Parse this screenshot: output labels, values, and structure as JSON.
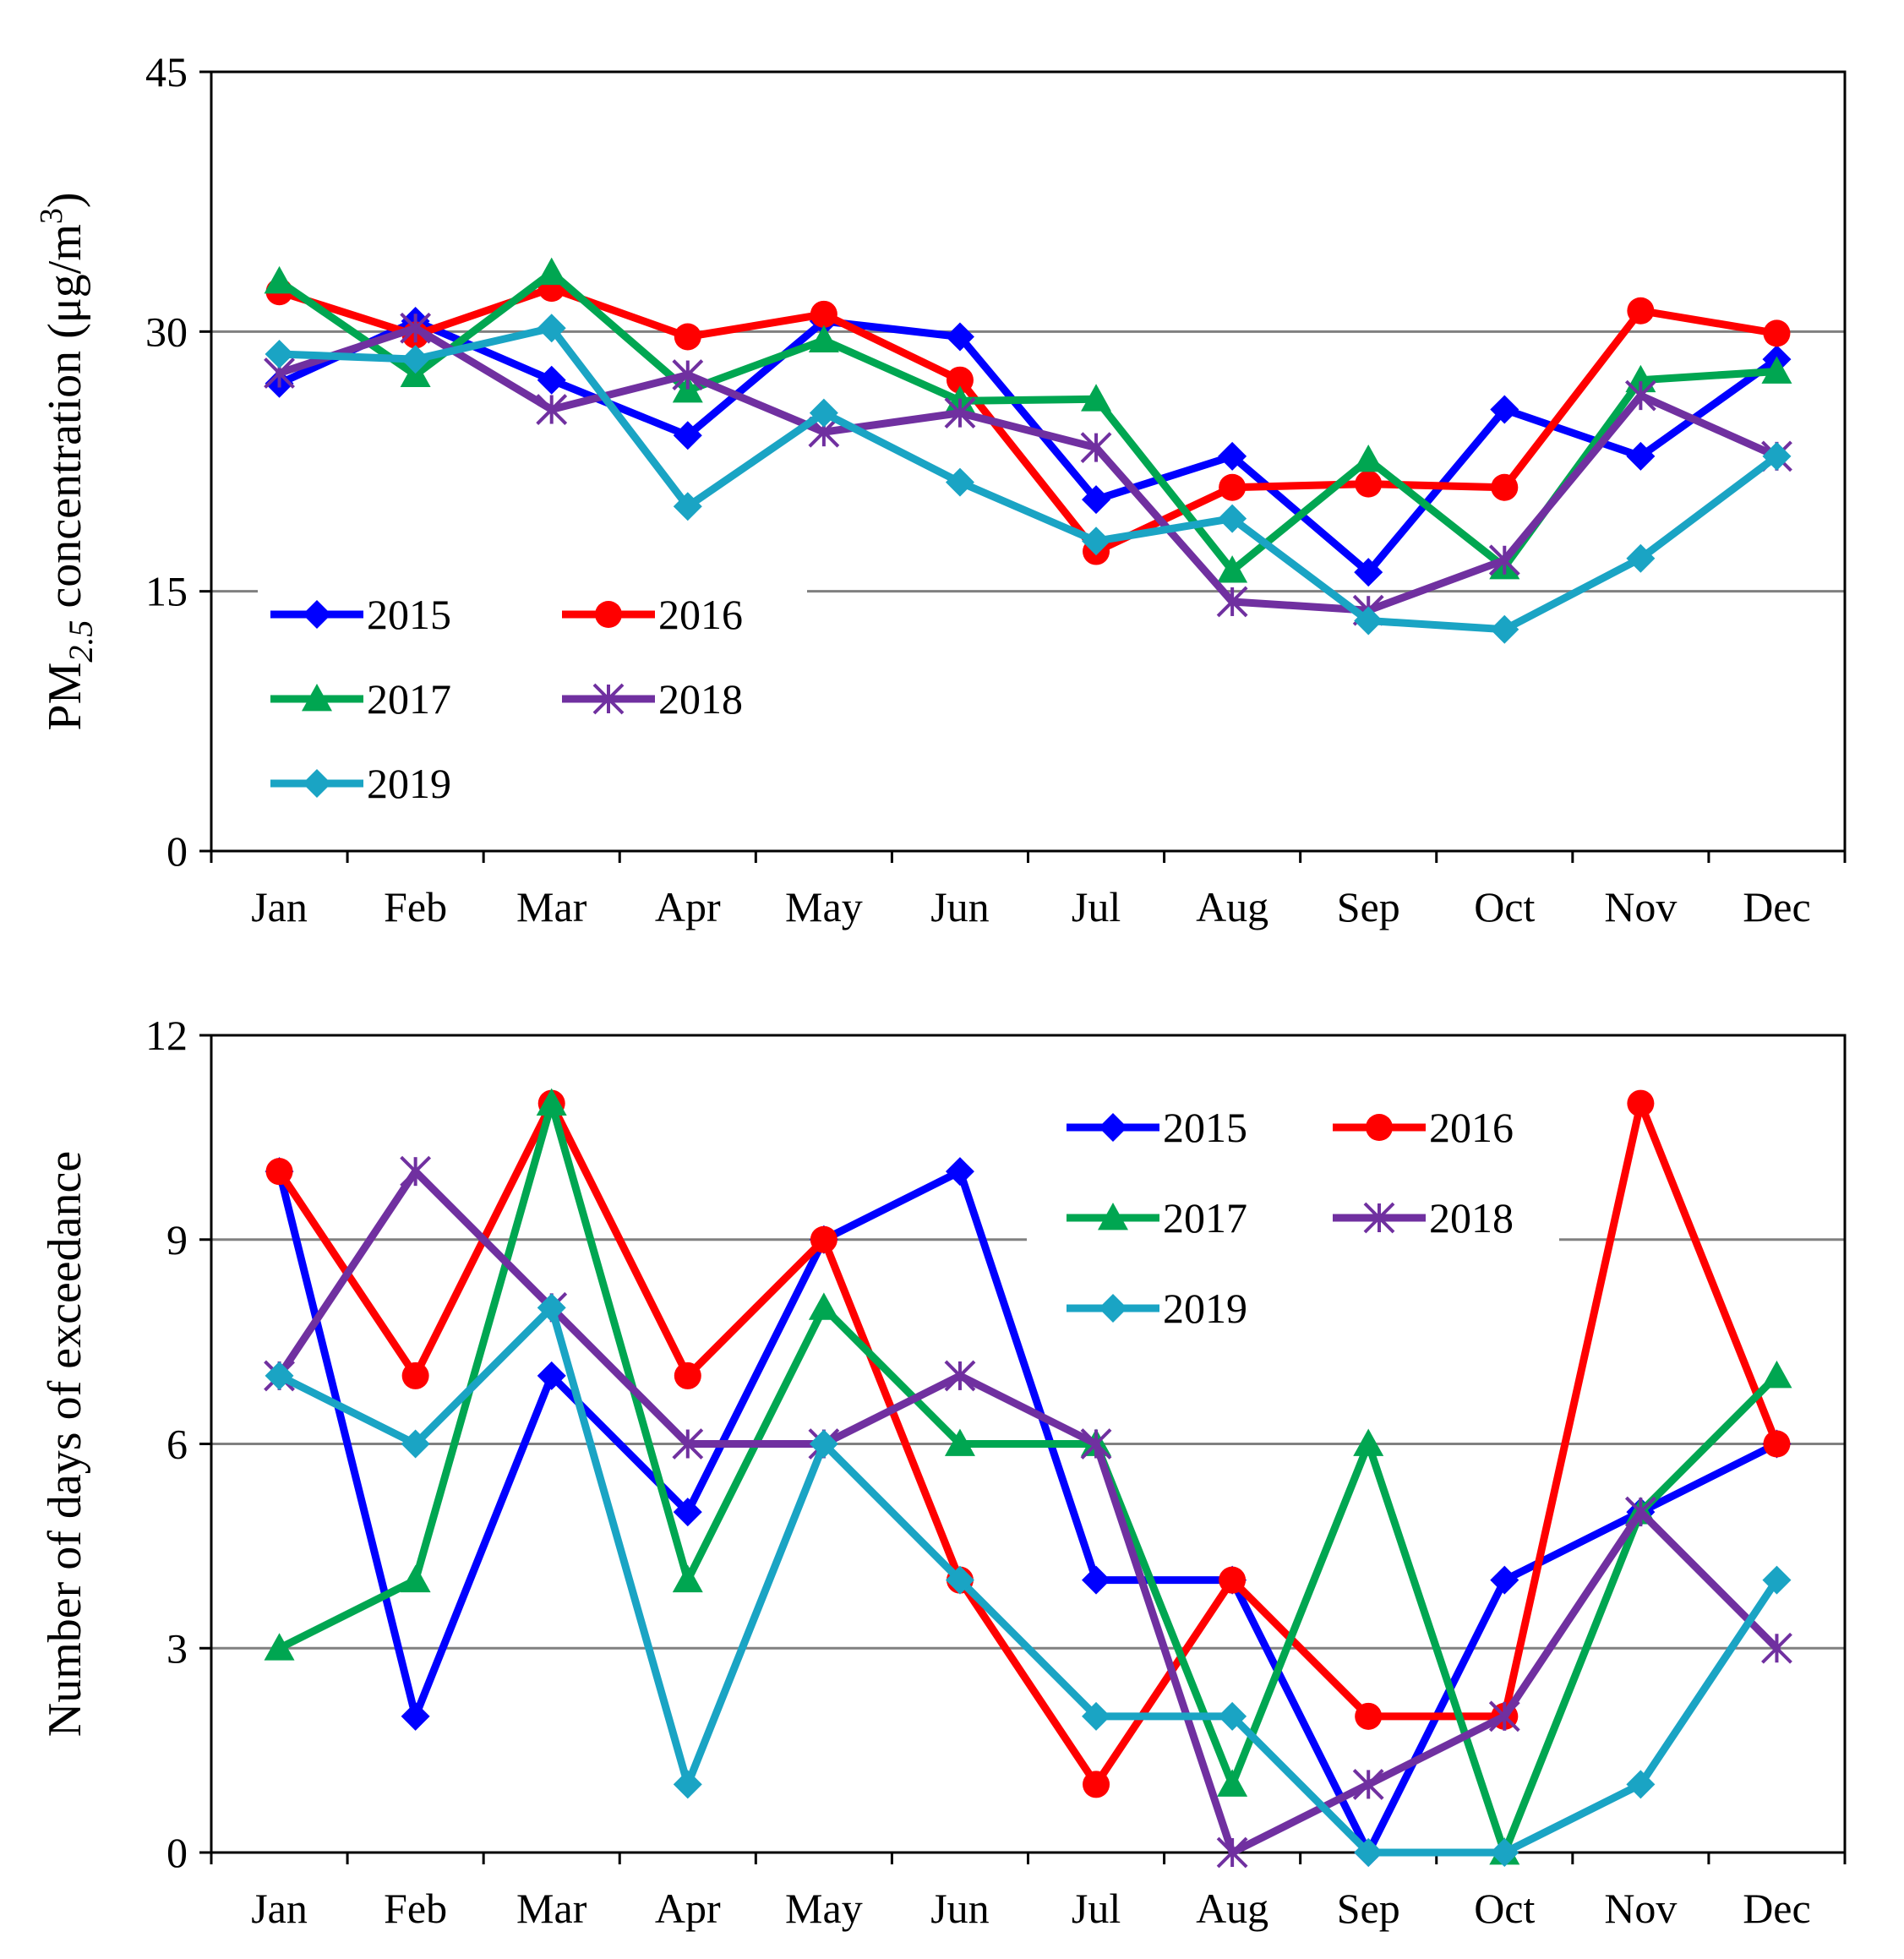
{
  "chart_data": [
    {
      "id": "top",
      "type": "line",
      "title": "",
      "xlabel": "",
      "ylabel": "PM2.5 concentration (μg/m3)",
      "ylabel_parts": {
        "pre": "PM",
        "sub": "2.5",
        "mid": " concentration (μg/m",
        "sup": "3",
        "post": ")"
      },
      "ylim": [
        0,
        45
      ],
      "yticks": [
        "0",
        "15",
        "30",
        "45"
      ],
      "gridlines": [
        15,
        30
      ],
      "categories": [
        "Jan",
        "Feb",
        "Mar",
        "Apr",
        "May",
        "Jun",
        "Jul",
        "Aug",
        "Sep",
        "Oct",
        "Nov",
        "Dec"
      ],
      "legend": "middle-left",
      "series": [
        {
          "name": "2015",
          "color": "#0000ff",
          "marker": "diamond",
          "values": [
            27.0,
            30.6,
            27.2,
            24.0,
            30.6,
            29.7,
            20.3,
            22.8,
            16.1,
            25.5,
            22.8,
            28.4
          ]
        },
        {
          "name": "2016",
          "color": "#ff0000",
          "marker": "circle",
          "values": [
            32.3,
            29.8,
            32.5,
            29.7,
            31.0,
            27.2,
            17.3,
            21.0,
            21.2,
            21.0,
            31.2,
            29.9
          ]
        },
        {
          "name": "2017",
          "color": "#00a651",
          "marker": "triangle",
          "values": [
            32.9,
            27.5,
            33.4,
            26.6,
            29.5,
            26.0,
            26.1,
            16.2,
            22.6,
            16.4,
            27.2,
            27.7
          ]
        },
        {
          "name": "2018",
          "color": "#7030a0",
          "marker": "asterisk",
          "values": [
            27.6,
            30.2,
            25.5,
            27.5,
            24.2,
            25.3,
            23.3,
            14.4,
            13.9,
            16.8,
            26.3,
            22.8
          ]
        },
        {
          "name": "2019",
          "color": "#1aa4c4",
          "marker": "diamond",
          "values": [
            28.7,
            28.4,
            30.2,
            19.9,
            25.3,
            21.3,
            17.9,
            19.2,
            13.3,
            12.8,
            16.9,
            22.8
          ]
        }
      ]
    },
    {
      "id": "bottom",
      "type": "line",
      "title": "",
      "xlabel": "",
      "ylabel": "Number of days of exceedance",
      "ylim": [
        0,
        12
      ],
      "yticks": [
        "0",
        "3",
        "6",
        "9",
        "12"
      ],
      "gridlines": [
        3,
        6,
        9
      ],
      "categories": [
        "Jan",
        "Feb",
        "Mar",
        "Apr",
        "May",
        "Jun",
        "Jul",
        "Aug",
        "Sep",
        "Oct",
        "Nov",
        "Dec"
      ],
      "legend": "top-right",
      "series": [
        {
          "name": "2015",
          "color": "#0000ff",
          "marker": "diamond",
          "values": [
            10,
            2,
            7,
            5,
            9,
            10,
            4,
            4,
            0,
            4,
            5,
            6
          ]
        },
        {
          "name": "2016",
          "color": "#ff0000",
          "marker": "circle",
          "values": [
            10,
            7,
            11,
            7,
            9,
            4,
            1,
            4,
            2,
            2,
            11,
            6
          ]
        },
        {
          "name": "2017",
          "color": "#00a651",
          "marker": "triangle",
          "values": [
            3,
            4,
            11,
            4,
            8,
            6,
            6,
            1,
            6,
            0,
            5,
            7
          ]
        },
        {
          "name": "2018",
          "color": "#7030a0",
          "marker": "asterisk",
          "values": [
            7,
            10,
            8,
            6,
            6,
            7,
            6,
            0,
            1,
            2,
            5,
            3
          ]
        },
        {
          "name": "2019",
          "color": "#1aa4c4",
          "marker": "diamond",
          "values": [
            7,
            6,
            8,
            1,
            6,
            4,
            2,
            2,
            0,
            0,
            1,
            4
          ]
        }
      ]
    }
  ]
}
